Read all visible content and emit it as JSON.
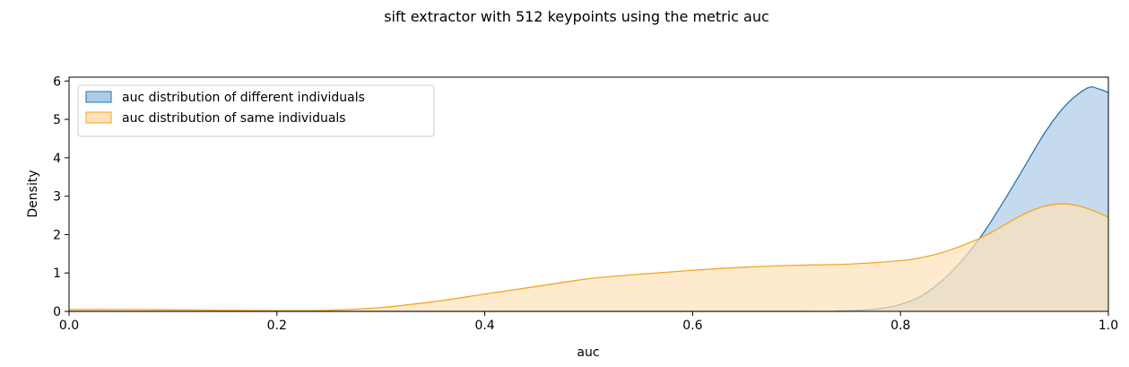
{
  "chart_data": {
    "type": "area",
    "title": "sift extractor with 512 keypoints using the metric auc",
    "xlabel": "auc",
    "ylabel": "Density",
    "xlim": [
      0.0,
      1.0
    ],
    "ylim": [
      0,
      6.1
    ],
    "xticks": [
      "0.0",
      "0.2",
      "0.4",
      "0.6",
      "0.8",
      "1.0"
    ],
    "yticks": [
      "0",
      "1",
      "2",
      "3",
      "4",
      "5",
      "6"
    ],
    "grid": false,
    "legend_position": "top-left",
    "series": [
      {
        "name": "auc distribution of different individuals",
        "line_color": "#1f77b4",
        "fill_color": "#aecbe5",
        "x": [
          0.0,
          0.7,
          0.74,
          0.76,
          0.78,
          0.8,
          0.82,
          0.84,
          0.86,
          0.88,
          0.9,
          0.92,
          0.94,
          0.96,
          0.98,
          0.99,
          1.0
        ],
        "y": [
          0.0,
          0.0,
          0.01,
          0.03,
          0.07,
          0.18,
          0.4,
          0.8,
          1.35,
          2.05,
          2.9,
          3.8,
          4.7,
          5.4,
          5.82,
          5.8,
          5.7
        ]
      },
      {
        "name": "auc distribution of same individuals",
        "line_color": "#f5a623",
        "fill_color": "#fde3b8",
        "x": [
          0.0,
          0.05,
          0.1,
          0.15,
          0.2,
          0.25,
          0.3,
          0.35,
          0.4,
          0.45,
          0.5,
          0.55,
          0.6,
          0.65,
          0.7,
          0.75,
          0.8,
          0.82,
          0.84,
          0.86,
          0.88,
          0.9,
          0.92,
          0.94,
          0.96,
          0.98,
          1.0
        ],
        "y": [
          0.05,
          0.05,
          0.04,
          0.03,
          0.02,
          0.03,
          0.1,
          0.25,
          0.45,
          0.65,
          0.85,
          0.97,
          1.07,
          1.15,
          1.2,
          1.23,
          1.32,
          1.4,
          1.53,
          1.72,
          1.95,
          2.25,
          2.55,
          2.75,
          2.8,
          2.68,
          2.45
        ]
      }
    ]
  }
}
